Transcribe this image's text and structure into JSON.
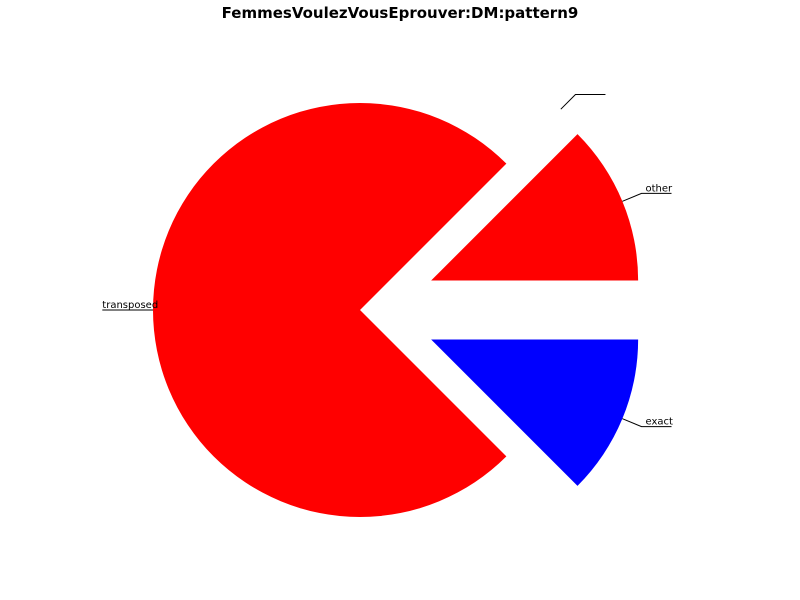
{
  "chart_data": {
    "type": "pie",
    "title": "FemmesVoulezVousEprouver:DM:pattern9",
    "slices": [
      {
        "label": "transposed",
        "value": 75,
        "color": "#ff0000",
        "exploded": false
      },
      {
        "label": "exact",
        "value": 12.5,
        "color": "#0000ff",
        "exploded": true
      },
      {
        "label": "other",
        "value": 12.5,
        "color": "#ff0000",
        "exploded": true
      },
      {
        "label": "",
        "value": 0,
        "color": "#ff0000",
        "exploded": true
      }
    ],
    "legend": "none"
  }
}
